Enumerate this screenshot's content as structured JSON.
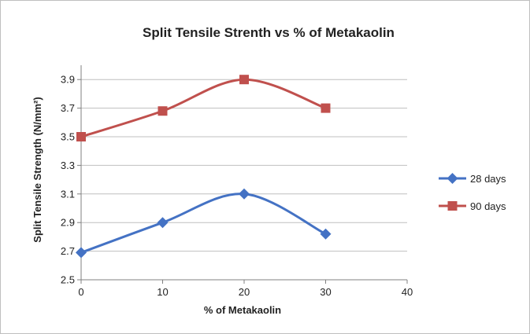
{
  "chart_data": {
    "type": "line",
    "title": "Split Tensile Strenth vs % of Metakaolin",
    "xlabel": "% of Metakaolin",
    "ylabel": "Split Tensile Strength (N/mm²)",
    "x": [
      0,
      10,
      20,
      30
    ],
    "xlim": [
      0,
      40
    ],
    "ylim": [
      2.5,
      4.0
    ],
    "xticks": [
      0,
      10,
      20,
      30,
      40
    ],
    "yticks": [
      2.5,
      2.7,
      2.9,
      3.1,
      3.3,
      3.5,
      3.7,
      3.9
    ],
    "xtick_labels": [
      "0",
      "10",
      "20",
      "30",
      "40"
    ],
    "ytick_labels": [
      "2.5",
      "2.7",
      "2.9",
      "3.1",
      "3.3",
      "3.5",
      "3.7",
      "3.9"
    ],
    "grid": "horizontal",
    "smoothed": true,
    "legend_position": "right",
    "series": [
      {
        "name": "28 days",
        "values": [
          2.69,
          2.9,
          3.1,
          2.82
        ],
        "color": "#4472C4",
        "marker": "diamond"
      },
      {
        "name": "90 days",
        "values": [
          3.5,
          3.68,
          3.9,
          3.7
        ],
        "color": "#C0504D",
        "marker": "square"
      }
    ]
  }
}
